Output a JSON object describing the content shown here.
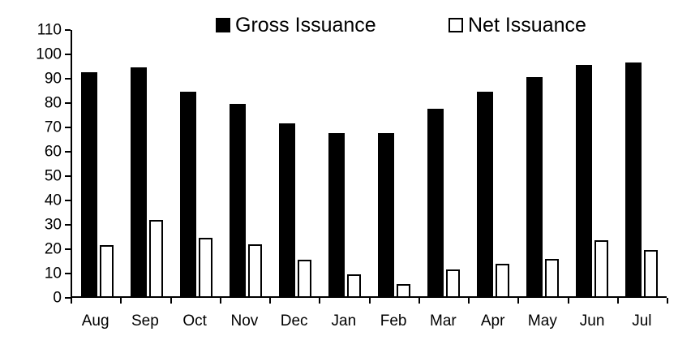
{
  "legend": {
    "gross_label": "Gross Issuance",
    "net_label": "Net Issuance"
  },
  "colors": {
    "gross_bar": "#000000",
    "net_bar_fill": "#ffffff",
    "net_bar_border": "#000000",
    "axis": "#000000",
    "background": "#ffffff"
  },
  "chart_data": {
    "type": "bar",
    "title": "",
    "xlabel": "",
    "ylabel": "",
    "categories": [
      "Aug",
      "Sep",
      "Oct",
      "Nov",
      "Dec",
      "Jan",
      "Feb",
      "Mar",
      "Apr",
      "May",
      "Jun",
      "Jul"
    ],
    "series": [
      {
        "name": "Gross Issuance",
        "style": "solid-black",
        "values": [
          92,
          94,
          84,
          79,
          71,
          67,
          67,
          77,
          84,
          90,
          95,
          96
        ]
      },
      {
        "name": "Net Issuance",
        "style": "white-black-outline",
        "values": [
          21,
          31.5,
          24,
          21.5,
          15,
          9,
          5,
          11,
          13.5,
          15.5,
          23,
          19
        ]
      }
    ],
    "ylim": [
      0,
      110
    ],
    "yticks": [
      0,
      10,
      20,
      30,
      40,
      50,
      60,
      70,
      80,
      90,
      100,
      110
    ],
    "grid": false,
    "legend_position": "top-center"
  }
}
